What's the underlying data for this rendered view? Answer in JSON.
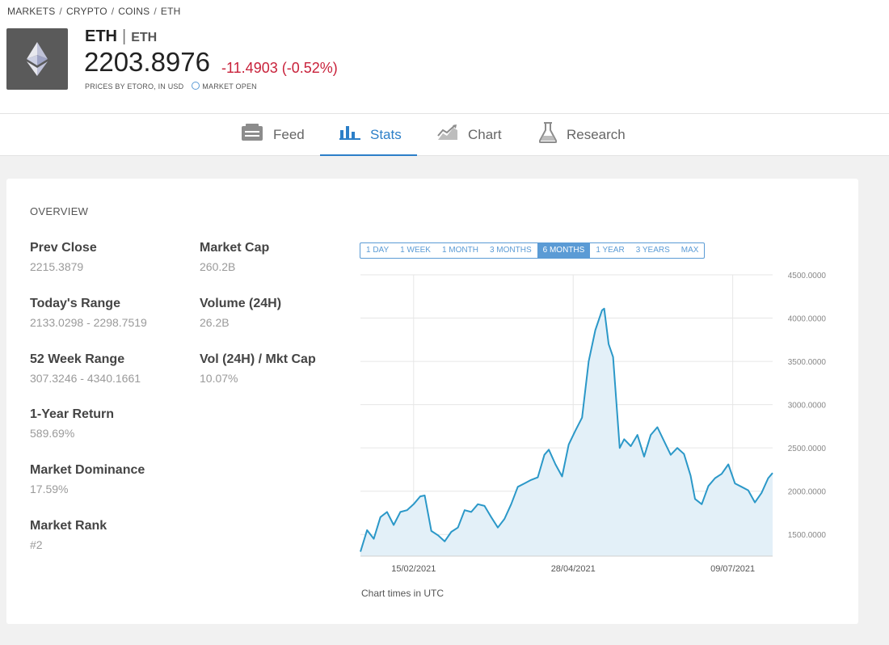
{
  "breadcrumb": [
    "MARKETS",
    "CRYPTO",
    "COINS",
    "ETH"
  ],
  "header": {
    "symbol": "ETH",
    "sub": "ETH",
    "price": "2203.8976",
    "change": "-11.4903 (-0.52%)",
    "prices_by": "PRICES BY ETORO, IN USD",
    "market_status": "MARKET OPEN"
  },
  "colors": {
    "accent": "#2c7fc8",
    "negative": "#c8213a",
    "line": "#2b98c8"
  },
  "tabs": [
    {
      "label": "Feed",
      "icon": "feed-icon"
    },
    {
      "label": "Stats",
      "icon": "stats-icon",
      "active": true
    },
    {
      "label": "Chart",
      "icon": "chart-icon"
    },
    {
      "label": "Research",
      "icon": "flask-icon"
    }
  ],
  "overview": {
    "heading": "OVERVIEW",
    "left": [
      {
        "label": "Prev Close",
        "value": "2215.3879"
      },
      {
        "label": "Today's Range",
        "value": "2133.0298 - 2298.7519"
      },
      {
        "label": "52 Week Range",
        "value": "307.3246 - 4340.1661"
      },
      {
        "label": "1-Year Return",
        "value": "589.69%"
      },
      {
        "label": "Market Dominance",
        "value": "17.59%"
      },
      {
        "label": "Market Rank",
        "value": "#2"
      }
    ],
    "right": [
      {
        "label": "Market Cap",
        "value": "260.2B"
      },
      {
        "label": "Volume (24H)",
        "value": "26.2B"
      },
      {
        "label": "Vol (24H) / Mkt Cap",
        "value": "10.07%"
      }
    ]
  },
  "ranges": [
    "1 DAY",
    "1 WEEK",
    "1 MONTH",
    "3 MONTHS",
    "6 MONTHS",
    "1 YEAR",
    "3 YEARS",
    "MAX"
  ],
  "active_range": "6 MONTHS",
  "chart_note": "Chart times in UTC",
  "chart_data": {
    "type": "area",
    "ylim": [
      1250,
      4500
    ],
    "y_ticks": [
      1500,
      2000,
      2500,
      3000,
      3500,
      4000,
      4500
    ],
    "y_tick_labels": [
      "1500.0000",
      "2000.0000",
      "2500.0000",
      "3000.0000",
      "3500.0000",
      "4000.0000",
      "4500.0000"
    ],
    "x_ticks": [
      {
        "date": "2021-02-15",
        "label": "15/02/2021"
      },
      {
        "date": "2021-04-28",
        "label": "28/04/2021"
      },
      {
        "date": "2021-07-09",
        "label": "09/07/2021"
      }
    ],
    "x_range": [
      "2021-01-22",
      "2021-07-27"
    ],
    "grid": true,
    "series": [
      {
        "x": [
          "2021-01-22",
          "2021-01-25",
          "2021-01-28",
          "2021-01-31",
          "2021-02-03",
          "2021-02-06",
          "2021-02-09",
          "2021-02-12",
          "2021-02-15",
          "2021-02-18",
          "2021-02-20",
          "2021-02-23",
          "2021-02-26",
          "2021-03-01",
          "2021-03-04",
          "2021-03-07",
          "2021-03-10",
          "2021-03-13",
          "2021-03-16",
          "2021-03-19",
          "2021-03-22",
          "2021-03-25",
          "2021-03-28",
          "2021-03-31",
          "2021-04-03",
          "2021-04-06",
          "2021-04-09",
          "2021-04-12",
          "2021-04-15",
          "2021-04-17",
          "2021-04-20",
          "2021-04-23",
          "2021-04-26",
          "2021-04-29",
          "2021-05-02",
          "2021-05-05",
          "2021-05-08",
          "2021-05-11",
          "2021-05-12",
          "2021-05-14",
          "2021-05-16",
          "2021-05-19",
          "2021-05-21",
          "2021-05-24",
          "2021-05-27",
          "2021-05-30",
          "2021-06-02",
          "2021-06-05",
          "2021-06-08",
          "2021-06-11",
          "2021-06-14",
          "2021-06-17",
          "2021-06-20",
          "2021-06-22",
          "2021-06-25",
          "2021-06-28",
          "2021-07-01",
          "2021-07-04",
          "2021-07-07",
          "2021-07-10",
          "2021-07-13",
          "2021-07-16",
          "2021-07-19",
          "2021-07-22",
          "2021-07-25",
          "2021-07-27"
        ],
        "y": [
          1300,
          1550,
          1450,
          1700,
          1760,
          1610,
          1760,
          1780,
          1850,
          1940,
          1950,
          1540,
          1490,
          1420,
          1530,
          1580,
          1780,
          1760,
          1850,
          1830,
          1700,
          1580,
          1680,
          1850,
          2050,
          2090,
          2130,
          2160,
          2420,
          2480,
          2310,
          2170,
          2540,
          2700,
          2850,
          3500,
          3860,
          4090,
          4110,
          3700,
          3550,
          2500,
          2600,
          2520,
          2650,
          2400,
          2650,
          2740,
          2580,
          2420,
          2500,
          2430,
          2180,
          1910,
          1850,
          2060,
          2150,
          2200,
          2310,
          2090,
          2050,
          2010,
          1870,
          1980,
          2150,
          2210
        ]
      }
    ]
  }
}
